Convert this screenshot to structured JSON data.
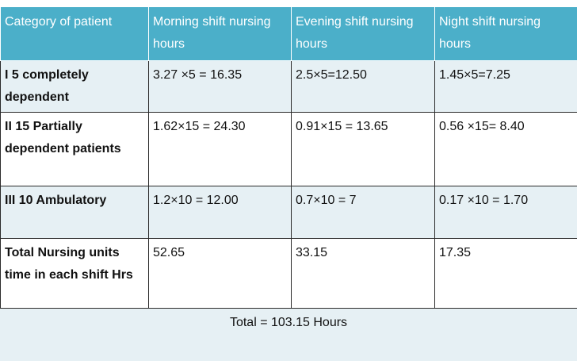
{
  "table": {
    "headers": [
      "Category of patient",
      "Morning shift nursing hours",
      "Evening shift nursing hours",
      "Night shift nursing hours"
    ],
    "rows": [
      {
        "category": "I  5 completely dependent",
        "morning": "3.27 ×5 = 16.35",
        "evening": "2.5×5=12.50",
        "night": "1.45×5=7.25"
      },
      {
        "category": "II  15 Partially dependent patients",
        "morning": "1.62×15 = 24.30",
        "evening": "0.91×15 = 13.65",
        "night": "0.56 ×15= 8.40"
      },
      {
        "category": "III   10 Ambulatory",
        "morning": "1.2×10 = 12.00",
        "evening": "0.7×10 = 7",
        "night": "0.17 ×10 = 1.70"
      },
      {
        "category": "Total Nursing units time in each shift Hrs",
        "morning": "52.65",
        "evening": "33.15",
        "night": "17.35"
      }
    ],
    "grand_total": "Total =  103.15 Hours"
  },
  "colors": {
    "header_bg": "#4bafc9",
    "header_text": "#ffffff",
    "shaded_row_bg": "#e6f0f4",
    "border": "#2b2b2b"
  }
}
